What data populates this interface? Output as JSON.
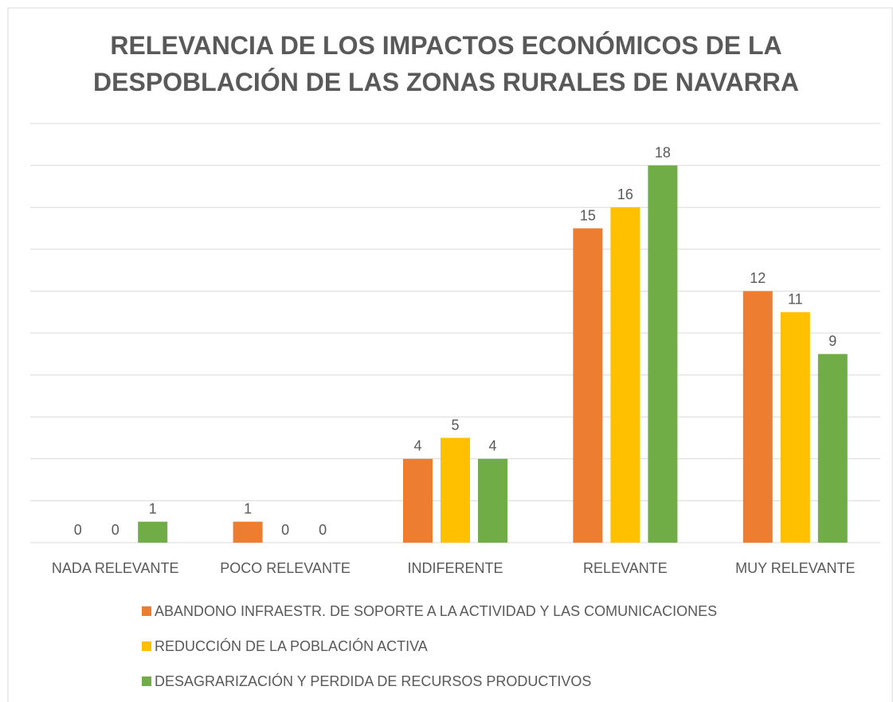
{
  "chart_data": {
    "type": "bar",
    "title": "RELEVANCIA DE LOS IMPACTOS ECONÓMICOS DE LA DESPOBLACIÓN DE LAS ZONAS RURALES DE NAVARRA",
    "categories": [
      "NADA RELEVANTE",
      "POCO RELEVANTE",
      "INDIFERENTE",
      "RELEVANTE",
      "MUY RELEVANTE"
    ],
    "series": [
      {
        "name": "ABANDONO INFRAESTR. DE SOPORTE A LA ACTIVIDAD Y LAS COMUNICACIONES",
        "color": "#ed7d31",
        "values": [
          0,
          1,
          4,
          15,
          12
        ]
      },
      {
        "name": "REDUCCIÓN DE LA POBLACIÓN ACTIVA",
        "color": "#ffc000",
        "values": [
          0,
          0,
          5,
          16,
          11
        ]
      },
      {
        "name": "DESAGRARIZACIÓN Y PERDIDA DE RECURSOS PRODUCTIVOS",
        "color": "#70ad47",
        "values": [
          1,
          0,
          4,
          18,
          9
        ]
      }
    ],
    "ylim": [
      0,
      20
    ],
    "yticks": [
      0,
      2,
      4,
      6,
      8,
      10,
      12,
      14,
      16,
      18,
      20
    ],
    "grid": true,
    "legend": "bottom"
  }
}
